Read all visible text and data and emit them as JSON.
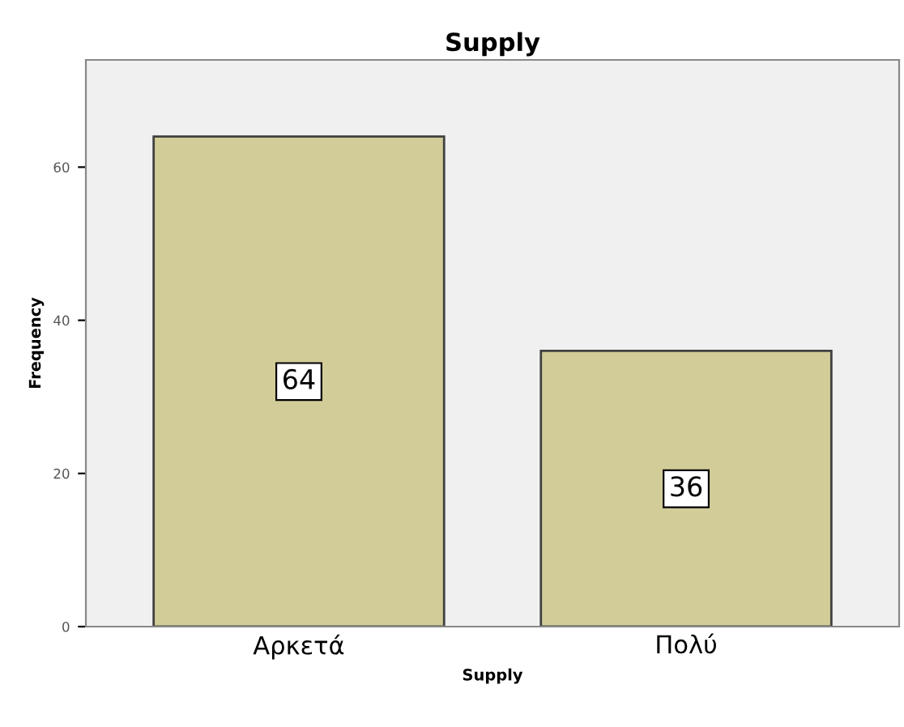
{
  "chart_data": {
    "type": "bar",
    "title": "Supply",
    "xlabel": "Supply",
    "ylabel": "Frequency",
    "categories": [
      "Αρκετά",
      "Πολύ"
    ],
    "values": [
      64,
      36
    ],
    "color": "#d2cc98",
    "ylim": [
      0,
      74
    ],
    "yticks": [
      0,
      20,
      40,
      60
    ],
    "grid": false,
    "data_labels": true
  }
}
